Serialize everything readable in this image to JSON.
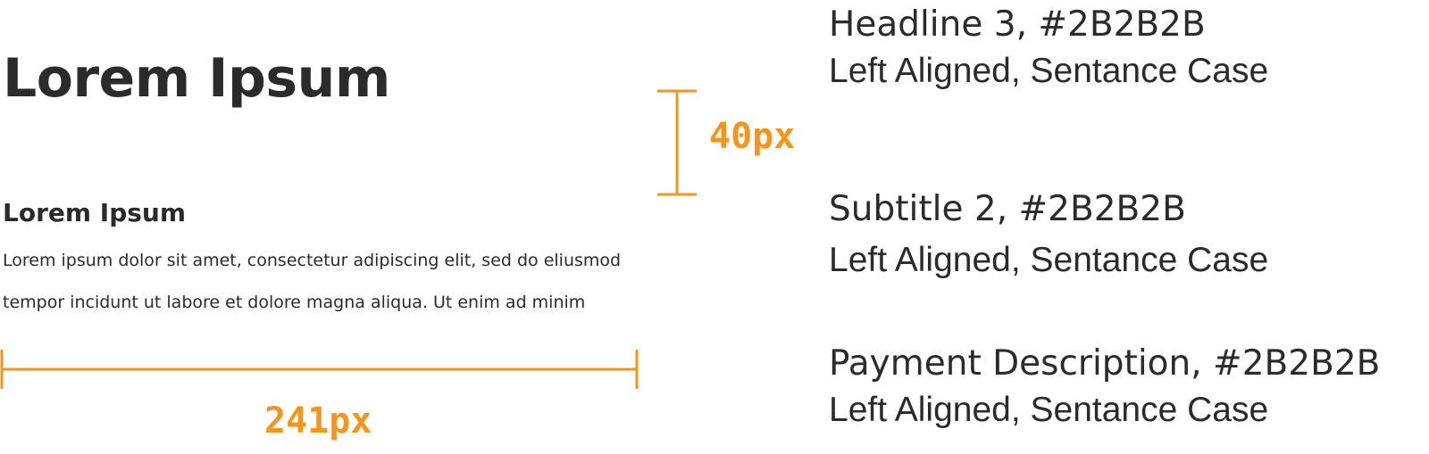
{
  "specimen": {
    "headline": "Lorem Ipsum",
    "subtitle": "Lorem Ipsum",
    "body_lines": [
      "Lorem ipsum dolor sit amet, consectetur adipiscing elit, sed do eliusmod",
      "tempor  incidunt ut labore et dolore magna aliqua. Ut enim ad minim"
    ]
  },
  "measurements": {
    "vertical_spacing_label": "40px",
    "width_label": "241px",
    "accent_color": "#F7941D"
  },
  "specs": [
    {
      "title": "Headline 3, #2B2B2B",
      "description": "Left Aligned, Sentance Case"
    },
    {
      "title": "Subtitle 2, #2B2B2B",
      "description": "Left Aligned, Sentance Case"
    },
    {
      "title": "Payment Description, #2B2B2B",
      "description": "Left Aligned, Sentance Case"
    }
  ],
  "text_color": "#2B2B2B"
}
